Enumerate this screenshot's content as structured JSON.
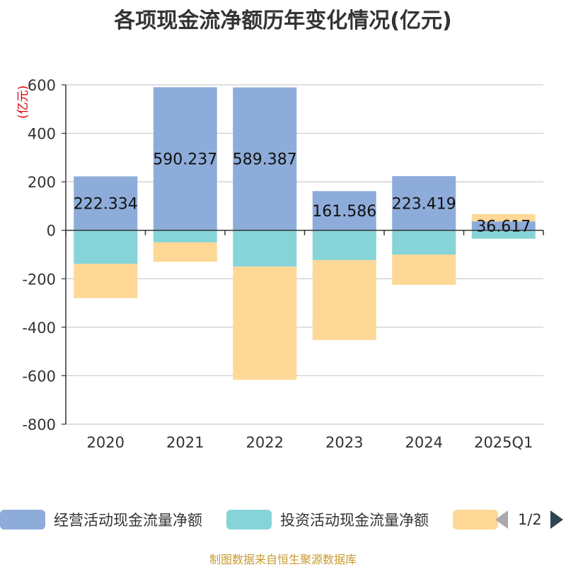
{
  "chart_data": {
    "type": "bar",
    "stacked": true,
    "title": "各项现金流净额历年变化情况(亿元)",
    "unit_label": "(亿元)",
    "categories": [
      "2020",
      "2021",
      "2022",
      "2023",
      "2024",
      "2025Q1"
    ],
    "ylim": [
      -800,
      600
    ],
    "yticks": [
      600,
      400,
      200,
      0,
      -200,
      -400,
      -600,
      -800
    ],
    "grid": true,
    "series": [
      {
        "name": "经营活动现金流量净额",
        "color": "#8eacd9",
        "values": [
          222.334,
          590.237,
          589.387,
          161.586,
          223.419,
          36.617
        ],
        "labels": [
          "222.334",
          "590.237",
          "589.387",
          "161.586",
          "223.419",
          "36.617"
        ]
      },
      {
        "name": "投资活动现金流量净额",
        "color": "#86d4d8",
        "values": [
          -138,
          -50,
          -150,
          -123,
          -100,
          -35
        ]
      },
      {
        "name": "",
        "color": "#fed896",
        "values": [
          -142,
          -80,
          -467,
          -330,
          -125,
          30
        ]
      }
    ]
  },
  "legend": {
    "items": [
      {
        "label": "经营活动现金流量净额",
        "color": "#8eacd9"
      },
      {
        "label": "投资活动现金流量净额",
        "color": "#86d4d8"
      },
      {
        "label": "",
        "color": "#fed896"
      }
    ],
    "page_indicator": "1/2"
  },
  "footer": "制图数据来自恒生聚源数据库"
}
